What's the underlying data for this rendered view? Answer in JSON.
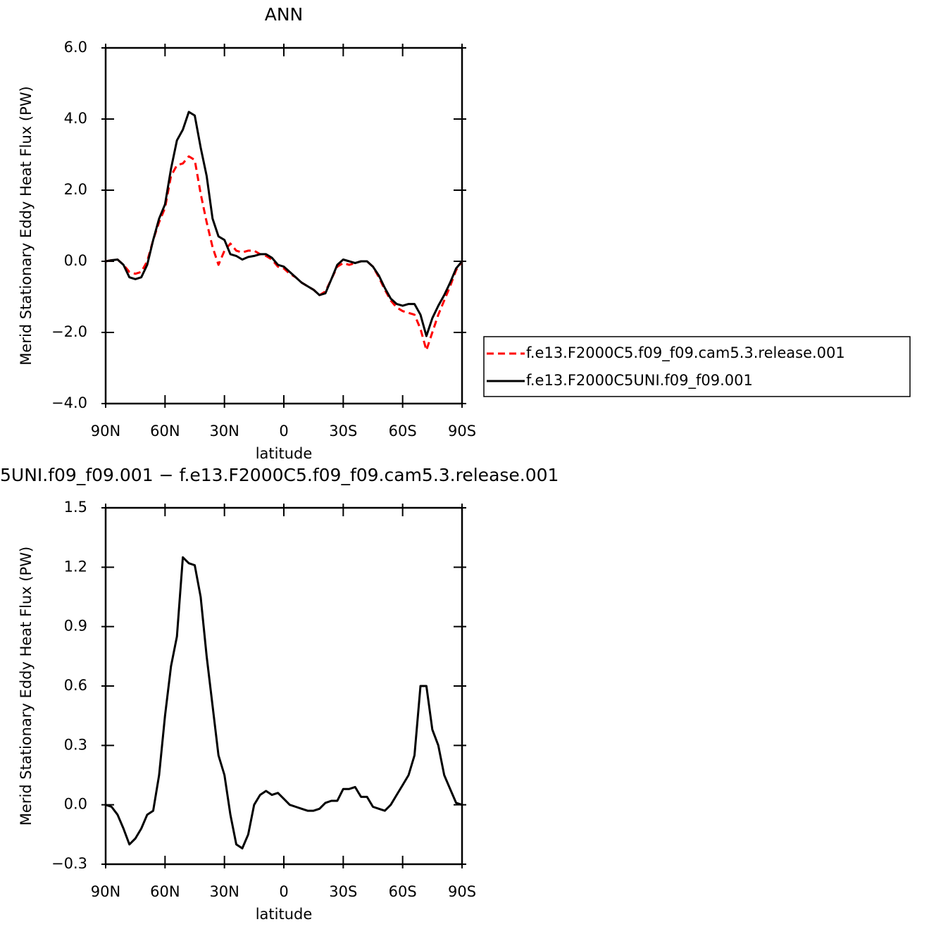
{
  "chart_data": [
    {
      "type": "line",
      "title": "ANN",
      "xlabel": "latitude",
      "ylabel": "Merid Stationary Eddy Heat Flux (PW)",
      "x": [
        90,
        87,
        84,
        81,
        78,
        75,
        72,
        69,
        66,
        63,
        60,
        57,
        54,
        51,
        48,
        45,
        42,
        39,
        36,
        33,
        30,
        27,
        24,
        21,
        18,
        15,
        12,
        9,
        6,
        3,
        0,
        -3,
        -6,
        -9,
        -12,
        -15,
        -18,
        -21,
        -24,
        -27,
        -30,
        -33,
        -36,
        -39,
        -42,
        -45,
        -48,
        -51,
        -54,
        -57,
        -60,
        -63,
        -66,
        -69,
        -72,
        -75,
        -78,
        -81,
        -84,
        -87,
        -90
      ],
      "series": [
        {
          "name": "f.e13.F2000C5.f09_f09.cam5.3.release.001",
          "color": "#ff0000",
          "linestyle": "dashed",
          "values": [
            0,
            0.03,
            0.05,
            -0.1,
            -0.3,
            -0.35,
            -0.3,
            0.0,
            0.6,
            1.1,
            1.5,
            2.4,
            2.7,
            2.75,
            2.95,
            2.85,
            1.9,
            1.1,
            0.4,
            -0.1,
            0.3,
            0.5,
            0.3,
            0.25,
            0.3,
            0.3,
            0.2,
            0.15,
            0.05,
            -0.15,
            -0.2,
            -0.35,
            -0.45,
            -0.6,
            -0.7,
            -0.8,
            -0.95,
            -0.85,
            -0.5,
            -0.15,
            -0.05,
            -0.1,
            -0.05,
            0.0,
            0.0,
            -0.15,
            -0.45,
            -0.8,
            -1.1,
            -1.3,
            -1.4,
            -1.45,
            -1.5,
            -1.9,
            -2.5,
            -2.0,
            -1.5,
            -1.1,
            -0.7,
            -0.25,
            0
          ]
        },
        {
          "name": "f.e13.F2000C5UNI.f09_f09.001",
          "color": "#000000",
          "linestyle": "solid",
          "values": [
            0,
            0.03,
            0.05,
            -0.1,
            -0.45,
            -0.5,
            -0.45,
            -0.1,
            0.6,
            1.2,
            1.6,
            2.6,
            3.4,
            3.7,
            4.2,
            4.1,
            3.2,
            2.4,
            1.2,
            0.7,
            0.6,
            0.2,
            0.15,
            0.05,
            0.12,
            0.15,
            0.2,
            0.2,
            0.1,
            -0.1,
            -0.15,
            -0.3,
            -0.45,
            -0.6,
            -0.7,
            -0.8,
            -0.95,
            -0.9,
            -0.5,
            -0.1,
            0.05,
            0.0,
            -0.05,
            0.0,
            0.0,
            -0.15,
            -0.4,
            -0.75,
            -1.05,
            -1.2,
            -1.25,
            -1.2,
            -1.2,
            -1.5,
            -2.1,
            -1.6,
            -1.25,
            -0.95,
            -0.6,
            -0.2,
            0
          ]
        }
      ],
      "xlim": [
        90,
        -90
      ],
      "xticks": [
        {
          "value": 90,
          "label": "90N"
        },
        {
          "value": 60,
          "label": "60N"
        },
        {
          "value": 30,
          "label": "30N"
        },
        0,
        {
          "value": -30,
          "label": "30S"
        },
        {
          "value": -60,
          "label": "60S"
        },
        {
          "value": -90,
          "label": "90S"
        }
      ],
      "ylim": [
        -4,
        6
      ],
      "yticks": [
        {
          "value": 6,
          "label": "6.0"
        },
        {
          "value": 4,
          "label": "4.0"
        },
        {
          "value": 2,
          "label": "2.0"
        },
        {
          "value": 0,
          "label": "0.0"
        },
        {
          "value": -2,
          "label": "−2.0"
        },
        {
          "value": -4,
          "label": "−4.0"
        }
      ],
      "legend": "right"
    },
    {
      "type": "line",
      "title": "5UNI.f09_f09.001 − f.e13.F2000C5.f09_f09.cam5.3.release.001",
      "xlabel": "latitude",
      "ylabel": "Merid Stationary Eddy Heat Flux (PW)",
      "x": [
        90,
        87,
        84,
        81,
        78,
        75,
        72,
        69,
        66,
        63,
        60,
        57,
        54,
        51,
        48,
        45,
        42,
        39,
        36,
        33,
        30,
        27,
        24,
        21,
        18,
        15,
        12,
        9,
        6,
        3,
        0,
        -3,
        -6,
        -9,
        -12,
        -15,
        -18,
        -21,
        -24,
        -27,
        -30,
        -33,
        -36,
        -39,
        -42,
        -45,
        -48,
        -51,
        -54,
        -57,
        -60,
        -63,
        -66,
        -69,
        -72,
        -75,
        -78,
        -81,
        -84,
        -87,
        -90
      ],
      "series": [
        {
          "color": "#000000",
          "linestyle": "solid",
          "values": [
            0,
            -0.01,
            -0.05,
            -0.12,
            -0.2,
            -0.17,
            -0.12,
            -0.05,
            -0.03,
            0.15,
            0.45,
            0.7,
            0.85,
            1.25,
            1.22,
            1.21,
            1.05,
            0.75,
            0.5,
            0.25,
            0.15,
            -0.05,
            -0.2,
            -0.22,
            -0.15,
            0.0,
            0.05,
            0.07,
            0.05,
            0.06,
            0.03,
            0.0,
            -0.01,
            -0.02,
            -0.03,
            -0.03,
            -0.02,
            0.01,
            0.02,
            0.02,
            0.08,
            0.08,
            0.09,
            0.04,
            0.04,
            -0.01,
            -0.02,
            -0.03,
            0.0,
            0.05,
            0.1,
            0.15,
            0.25,
            0.6,
            0.6,
            0.38,
            0.3,
            0.15,
            0.08,
            0.01,
            0
          ]
        }
      ],
      "xlim": [
        90,
        -90
      ],
      "xticks": [
        {
          "value": 90,
          "label": "90N"
        },
        {
          "value": 60,
          "label": "60N"
        },
        {
          "value": 30,
          "label": "30N"
        },
        0,
        {
          "value": -30,
          "label": "30S"
        },
        {
          "value": -60,
          "label": "60S"
        },
        {
          "value": -90,
          "label": "90S"
        }
      ],
      "ylim": [
        -0.3,
        1.5
      ],
      "yticks": [
        {
          "value": 1.5,
          "label": "1.5"
        },
        {
          "value": 1.2,
          "label": "1.2"
        },
        {
          "value": 0.9,
          "label": "0.9"
        },
        {
          "value": 0.6,
          "label": "0.6"
        },
        {
          "value": 0.3,
          "label": "0.3"
        },
        {
          "value": 0,
          "label": "0.0"
        },
        {
          "value": -0.3,
          "label": "−0.3"
        }
      ]
    }
  ]
}
